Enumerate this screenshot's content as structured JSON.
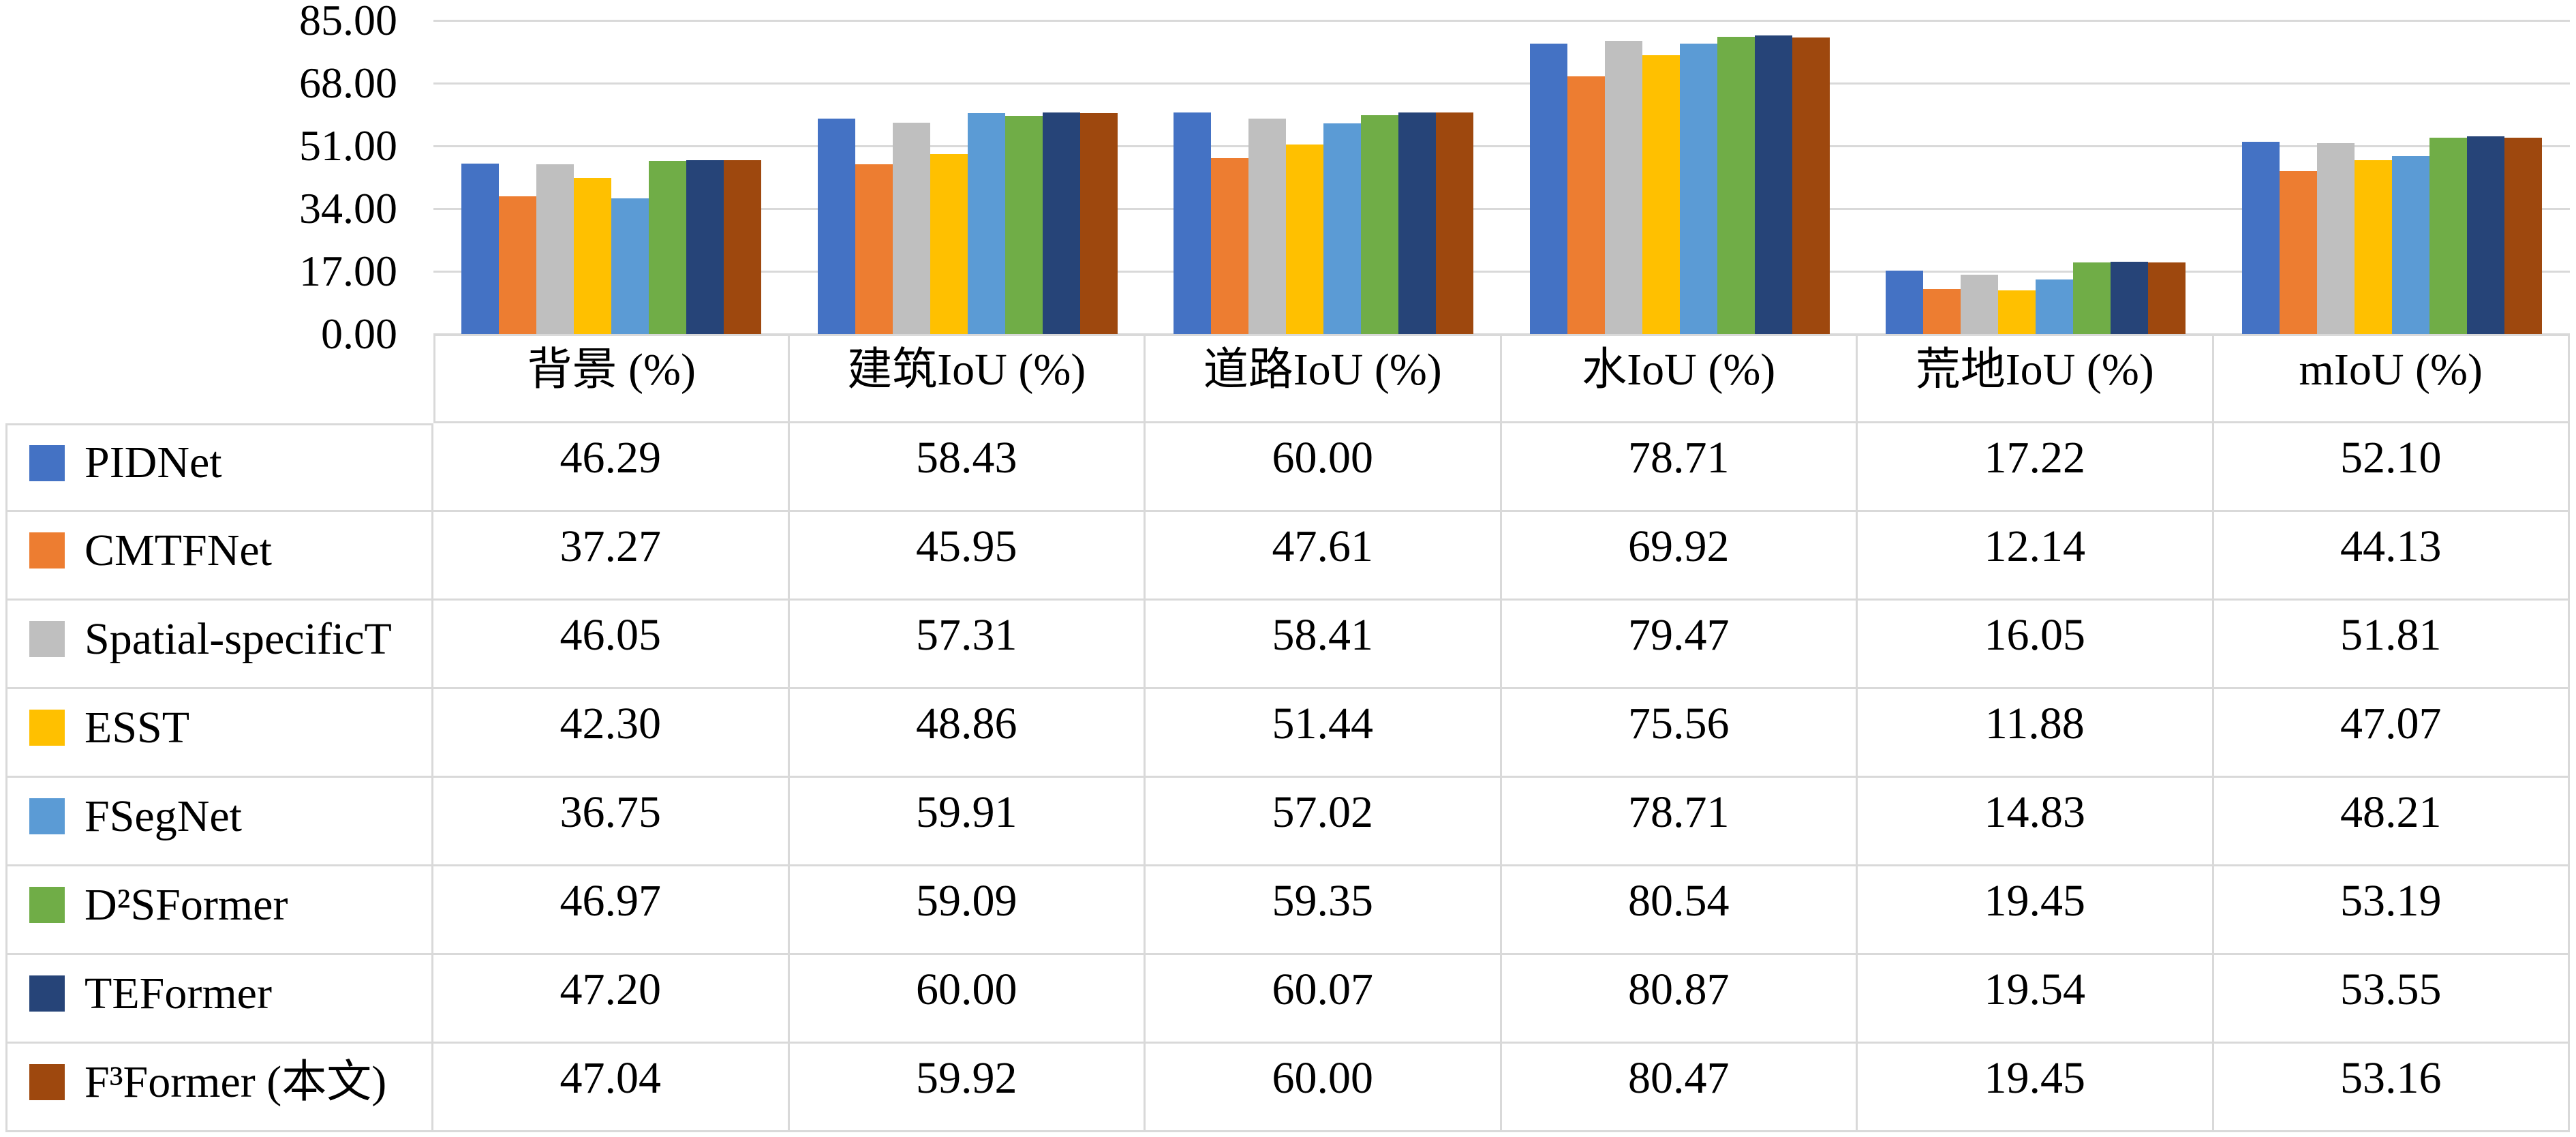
{
  "chart_data": {
    "type": "bar",
    "title": "",
    "xlabel": "",
    "ylabel": "",
    "categories": [
      "背景 (%)",
      "建筑IoU (%)",
      "道路IoU (%)",
      "水IoU (%)",
      "荒地IoU (%)",
      "mIoU (%)"
    ],
    "series": [
      {
        "name": "PIDNet",
        "color": "#4472C4",
        "values": [
          46.29,
          58.43,
          60.0,
          78.71,
          17.22,
          52.1
        ]
      },
      {
        "name": "CMTFNet",
        "color": "#ED7D31",
        "values": [
          37.27,
          45.95,
          47.61,
          69.92,
          12.14,
          44.13
        ]
      },
      {
        "name": "Spatial-specificT",
        "color": "#BFBFBF",
        "values": [
          46.05,
          57.31,
          58.41,
          79.47,
          16.05,
          51.81
        ]
      },
      {
        "name": "ESST",
        "color": "#FFC000",
        "values": [
          42.3,
          48.86,
          51.44,
          75.56,
          11.88,
          47.07
        ]
      },
      {
        "name": "FSegNet",
        "color": "#5B9BD5",
        "values": [
          36.75,
          59.91,
          57.02,
          78.71,
          14.83,
          48.21
        ]
      },
      {
        "name": "D²SFormer",
        "color": "#70AD47",
        "values": [
          46.97,
          59.09,
          59.35,
          80.54,
          19.45,
          53.19
        ]
      },
      {
        "name": "TEFormer",
        "color": "#264478",
        "values": [
          47.2,
          60.0,
          60.07,
          80.87,
          19.54,
          53.55
        ]
      },
      {
        "name": "F³Former (本文)",
        "color": "#9E480E",
        "values": [
          47.04,
          59.92,
          60.0,
          80.47,
          19.45,
          53.16
        ]
      }
    ],
    "y_axis": {
      "min": 0,
      "max": 85,
      "step": 17,
      "tick_labels": [
        "85.00",
        "68.00",
        "51.00",
        "34.00",
        "17.00",
        "0.00"
      ]
    },
    "grid": true,
    "legend_position": "data-table-left-column",
    "value_format_decimals": 2,
    "colors": {
      "gridline": "#D9D9D9",
      "table_border": "#D9D9D9",
      "text": "#000000",
      "background": "#FFFFFF"
    }
  }
}
